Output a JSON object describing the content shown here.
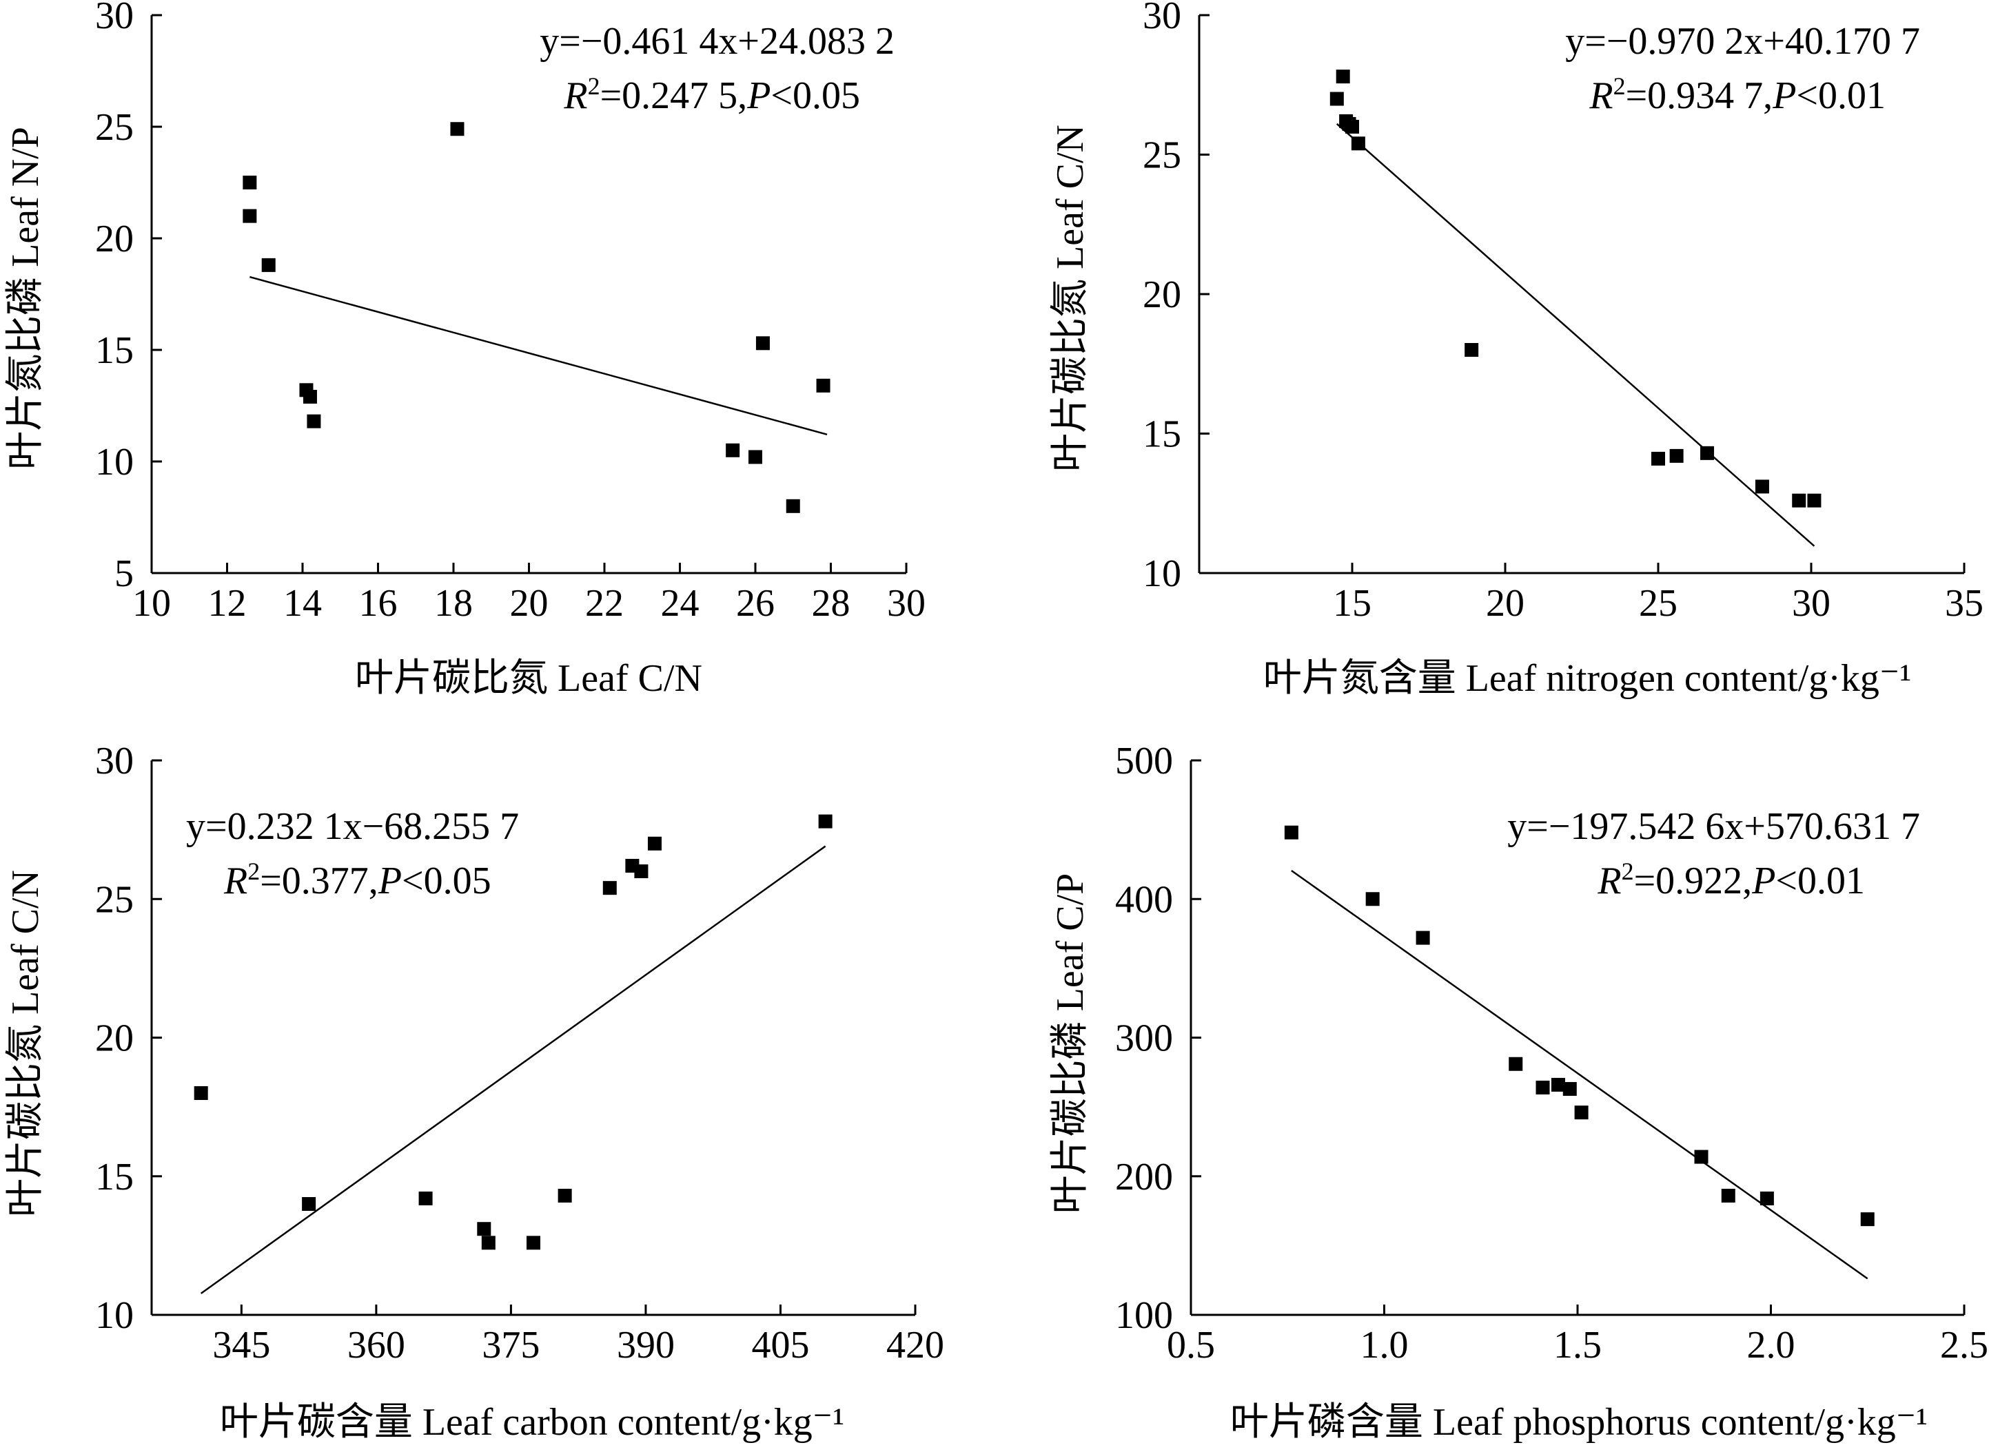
{
  "chart_data": [
    {
      "type": "scatter",
      "xlabel": "叶片碳比氮 Leaf C/N",
      "ylabel": "叶片氮比磷 Leaf N/P",
      "xlim": [
        10,
        30
      ],
      "ylim": [
        5,
        30
      ],
      "xticks": [
        "10",
        "12",
        "14",
        "16",
        "18",
        "20",
        "22",
        "24",
        "26",
        "28",
        "30"
      ],
      "yticks": [
        "5",
        "10",
        "15",
        "20",
        "25",
        "30"
      ],
      "equation": "y=−0.461 4x+24.083 2",
      "r2_line": {
        "r": "R",
        "sup": "2",
        "val": "=0.247 5,",
        "p": "P",
        "tail": "<0.05"
      },
      "annotation_position": "top-right",
      "points": [
        {
          "x": 12.6,
          "y": 22.5
        },
        {
          "x": 12.6,
          "y": 21.0
        },
        {
          "x": 13.1,
          "y": 18.8
        },
        {
          "x": 14.1,
          "y": 13.2
        },
        {
          "x": 14.2,
          "y": 12.9
        },
        {
          "x": 14.3,
          "y": 11.8
        },
        {
          "x": 18.1,
          "y": 24.9
        },
        {
          "x": 25.4,
          "y": 10.5
        },
        {
          "x": 26.0,
          "y": 10.2
        },
        {
          "x": 26.2,
          "y": 15.3
        },
        {
          "x": 27.0,
          "y": 8.0
        },
        {
          "x": 27.8,
          "y": 13.4
        }
      ],
      "fit": {
        "slope": -0.4614,
        "intercept": 24.0832,
        "x_range": [
          12.6,
          27.9
        ]
      }
    },
    {
      "type": "scatter",
      "xlabel": "叶片氮含量 Leaf nitrogen content/g·kg⁻¹",
      "ylabel": "叶片碳比氮 Leaf C/N",
      "xlim": [
        10,
        35
      ],
      "ylim": [
        10,
        30
      ],
      "xticks": [
        "15",
        "20",
        "25",
        "30",
        "35"
      ],
      "yticks": [
        "10",
        "15",
        "20",
        "25",
        "30"
      ],
      "equation": "y=−0.970 2x+40.170 7",
      "r2_line": {
        "r": "R",
        "sup": "2",
        "val": "=0.934 7,",
        "p": "P",
        "tail": "<0.01"
      },
      "annotation_position": "top-right",
      "points": [
        {
          "x": 14.5,
          "y": 27.0
        },
        {
          "x": 14.7,
          "y": 27.8
        },
        {
          "x": 14.8,
          "y": 26.2
        },
        {
          "x": 14.9,
          "y": 26.1
        },
        {
          "x": 15.0,
          "y": 26.0
        },
        {
          "x": 15.2,
          "y": 25.4
        },
        {
          "x": 18.9,
          "y": 18.0
        },
        {
          "x": 25.0,
          "y": 14.1
        },
        {
          "x": 25.6,
          "y": 14.2
        },
        {
          "x": 26.6,
          "y": 14.3
        },
        {
          "x": 28.4,
          "y": 13.1
        },
        {
          "x": 29.6,
          "y": 12.6
        },
        {
          "x": 30.1,
          "y": 12.6
        }
      ],
      "fit": {
        "slope": -0.9702,
        "intercept": 40.1707,
        "x_range": [
          14.5,
          30.1
        ]
      }
    },
    {
      "type": "scatter",
      "xlabel": "叶片碳含量 Leaf carbon content/g·kg⁻¹",
      "ylabel": "叶片碳比氮 Leaf C/N",
      "xlim": [
        335,
        420
      ],
      "ylim": [
        10,
        30
      ],
      "xticks": [
        "345",
        "360",
        "375",
        "390",
        "405",
        "420"
      ],
      "xtick_values": [
        345,
        360,
        375,
        390,
        405,
        420
      ],
      "yticks": [
        "10",
        "15",
        "20",
        "25",
        "30"
      ],
      "equation": "y=0.232 1x−68.255 7",
      "r2_line": {
        "r": "R",
        "sup": "2",
        "val": "=0.377,",
        "p": "P",
        "tail": "<0.05"
      },
      "annotation_position": "top-left",
      "points": [
        {
          "x": 340.5,
          "y": 18.0
        },
        {
          "x": 352.5,
          "y": 14.0
        },
        {
          "x": 365.5,
          "y": 14.2
        },
        {
          "x": 372.0,
          "y": 13.1
        },
        {
          "x": 372.5,
          "y": 12.6
        },
        {
          "x": 377.5,
          "y": 12.6
        },
        {
          "x": 381.0,
          "y": 14.3
        },
        {
          "x": 386.0,
          "y": 25.4
        },
        {
          "x": 388.5,
          "y": 26.2
        },
        {
          "x": 389.5,
          "y": 26.0
        },
        {
          "x": 391.0,
          "y": 27.0
        },
        {
          "x": 410.0,
          "y": 27.8
        }
      ],
      "fit": {
        "slope": 0.2321,
        "intercept": -68.2557,
        "x_range": [
          340.5,
          410.0
        ]
      }
    },
    {
      "type": "scatter",
      "xlabel": "叶片磷含量 Leaf phosphorus content/g·kg⁻¹",
      "ylabel": "叶片碳比磷 Leaf C/P",
      "xlim": [
        0.5,
        2.5
      ],
      "ylim": [
        100,
        500
      ],
      "xticks": [
        "0.5",
        "1.0",
        "1.5",
        "2.0",
        "2.5"
      ],
      "yticks": [
        "100",
        "200",
        "300",
        "400",
        "500"
      ],
      "equation": "y=−197.542 6x+570.631 7",
      "r2_line": {
        "r": "R",
        "sup": "2",
        "val": "=0.922,",
        "p": "P",
        "tail": "<0.01"
      },
      "annotation_position": "top-right",
      "points": [
        {
          "x": 0.76,
          "y": 448
        },
        {
          "x": 0.97,
          "y": 400
        },
        {
          "x": 1.1,
          "y": 372
        },
        {
          "x": 1.34,
          "y": 281
        },
        {
          "x": 1.41,
          "y": 264
        },
        {
          "x": 1.45,
          "y": 266
        },
        {
          "x": 1.48,
          "y": 263
        },
        {
          "x": 1.51,
          "y": 246
        },
        {
          "x": 1.82,
          "y": 214
        },
        {
          "x": 1.89,
          "y": 186
        },
        {
          "x": 1.99,
          "y": 184
        },
        {
          "x": 2.25,
          "y": 169
        }
      ],
      "fit": {
        "slope": -197.5426,
        "intercept": 570.6317,
        "x_range": [
          0.76,
          2.25
        ]
      }
    }
  ]
}
